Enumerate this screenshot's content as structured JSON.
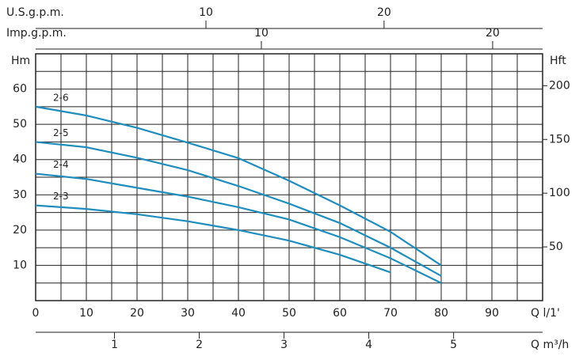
{
  "chart_data": {
    "type": "line",
    "x": [
      0,
      10,
      20,
      30,
      40,
      50,
      60,
      70,
      80
    ],
    "series": [
      {
        "name": "2-6",
        "color": "#1f8dbd",
        "values": [
          55,
          52.5,
          49,
          44.8,
          40.4,
          34,
          27,
          19.5,
          10
        ]
      },
      {
        "name": "2-5",
        "color": "#1f8dbd",
        "values": [
          45,
          43.5,
          40.5,
          37,
          32.5,
          27.5,
          22,
          15,
          7
        ]
      },
      {
        "name": "2-4",
        "color": "#1f8dbd",
        "values": [
          36,
          34.5,
          32,
          29.5,
          26.5,
          23,
          18,
          12,
          5
        ]
      },
      {
        "name": "2-3",
        "color": "#1f8dbd",
        "values": [
          27,
          26,
          24.5,
          22.5,
          20,
          17,
          13,
          8,
          null
        ]
      }
    ],
    "xlabel": "Q  l/1'",
    "ylabel": "Hm",
    "y2label": "Hft",
    "xlim": [
      0,
      100
    ],
    "xticks": [
      0,
      10,
      20,
      30,
      40,
      50,
      60,
      70,
      80,
      90
    ],
    "ylim": [
      0,
      70
    ],
    "yticks": [
      10,
      20,
      30,
      40,
      50,
      60
    ],
    "y2lim": [
      0,
      229.7
    ],
    "y2ticks": [
      50,
      100,
      150,
      200
    ],
    "xgrid": [
      0,
      5,
      10,
      15,
      20,
      25,
      30,
      35,
      40,
      45,
      50,
      55,
      60,
      65,
      70,
      75,
      80,
      85,
      90,
      95,
      100
    ],
    "ygrid": [
      0,
      5,
      10,
      15,
      20,
      25,
      30,
      35,
      40,
      45,
      50,
      55,
      60,
      65,
      70
    ],
    "extra_x_axes": [
      {
        "label": "U.S.g.p.m.",
        "side": "top",
        "lim": [
          0.44,
          28.9
        ],
        "ticks": [
          10,
          20
        ]
      },
      {
        "label": "Imp.g.p.m.",
        "side": "top",
        "lim": [
          0.24,
          22.16
        ],
        "ticks": [
          10,
          20
        ]
      },
      {
        "label": "Q m³/h",
        "side": "bottom",
        "lim": [
          0.07,
          6.05
        ],
        "ticks": [
          1,
          2,
          3,
          4,
          5
        ]
      }
    ]
  }
}
